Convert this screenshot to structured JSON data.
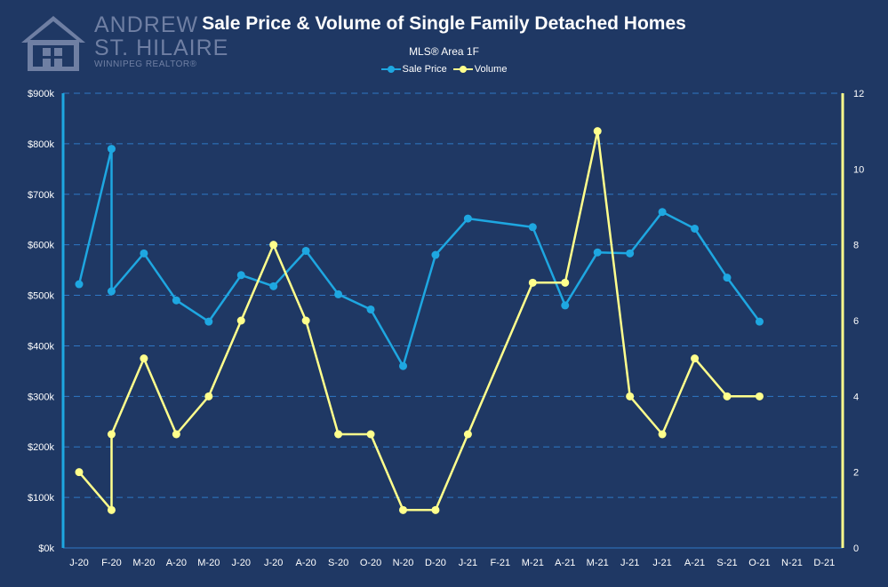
{
  "logo": {
    "line1": "ANDREW",
    "line2": "ST. HILAIRE",
    "line3": "WINNIPEG REALTOR®",
    "icon": "house-icon"
  },
  "colors": {
    "background": "#1f3864",
    "sale_price": "#1ea7e1",
    "volume": "#ffff8c",
    "grid": "#2f77c4",
    "left_axis": "#1ea7e1",
    "right_axis": "#ffff8c"
  },
  "chart_data": {
    "type": "line",
    "title": "Sale Price & Volume of Single Family Detached Homes",
    "subtitle": "MLS® Area 1F",
    "legend_position": "top",
    "grid": true,
    "categories": [
      "J-20",
      "F-20",
      "M-20",
      "A-20",
      "M-20",
      "J-20",
      "J-20",
      "A-20",
      "S-20",
      "O-20",
      "N-20",
      "D-20",
      "J-21",
      "F-21",
      "M-21",
      "A-21",
      "M-21",
      "J-21",
      "J-21",
      "A-21",
      "S-21",
      "O-21",
      "N-21",
      "D-21"
    ],
    "y_left": {
      "range": [
        0,
        900000
      ],
      "ticks": [
        0,
        100000,
        200000,
        300000,
        400000,
        500000,
        600000,
        700000,
        800000,
        900000
      ],
      "tick_labels": [
        "$0k",
        "$100k",
        "$200k",
        "$300k",
        "$400k",
        "$500k",
        "$600k",
        "$700k",
        "$800k",
        "$900k"
      ]
    },
    "y_right": {
      "range": [
        0,
        12
      ],
      "ticks": [
        0,
        2,
        4,
        6,
        8,
        10,
        12
      ],
      "tick_labels": [
        "0",
        "2",
        "4",
        "6",
        "8",
        "10",
        "12"
      ]
    },
    "series": [
      {
        "name": "Sale Price",
        "axis": "left",
        "points": [
          {
            "x": 0,
            "y": 522000
          },
          {
            "x": 1,
            "y": 790000
          },
          {
            "x": 1,
            "y": 508000
          },
          {
            "x": 2,
            "y": 583000
          },
          {
            "x": 3,
            "y": 490000
          },
          {
            "x": 4,
            "y": 448000
          },
          {
            "x": 5,
            "y": 540000
          },
          {
            "x": 6,
            "y": 518000
          },
          {
            "x": 7,
            "y": 588000
          },
          {
            "x": 8,
            "y": 502000
          },
          {
            "x": 9,
            "y": 472000
          },
          {
            "x": 10,
            "y": 360000
          },
          {
            "x": 11,
            "y": 580000
          },
          {
            "x": 12,
            "y": 652000
          },
          {
            "x": 14,
            "y": 635000
          },
          {
            "x": 15,
            "y": 480000
          },
          {
            "x": 16,
            "y": 585000
          },
          {
            "x": 17,
            "y": 583000
          },
          {
            "x": 18,
            "y": 665000
          },
          {
            "x": 19,
            "y": 632000
          },
          {
            "x": 20,
            "y": 535000
          },
          {
            "x": 21,
            "y": 448000
          }
        ]
      },
      {
        "name": "Volume",
        "axis": "right",
        "points": [
          {
            "x": 0,
            "y": 2
          },
          {
            "x": 1,
            "y": 1
          },
          {
            "x": 1,
            "y": 3
          },
          {
            "x": 2,
            "y": 5
          },
          {
            "x": 3,
            "y": 3
          },
          {
            "x": 4,
            "y": 4
          },
          {
            "x": 5,
            "y": 6
          },
          {
            "x": 6,
            "y": 8
          },
          {
            "x": 7,
            "y": 6
          },
          {
            "x": 8,
            "y": 3
          },
          {
            "x": 9,
            "y": 3
          },
          {
            "x": 10,
            "y": 1
          },
          {
            "x": 11,
            "y": 1
          },
          {
            "x": 12,
            "y": 3
          },
          {
            "x": 14,
            "y": 7
          },
          {
            "x": 15,
            "y": 7
          },
          {
            "x": 16,
            "y": 11
          },
          {
            "x": 17,
            "y": 4
          },
          {
            "x": 18,
            "y": 3
          },
          {
            "x": 19,
            "y": 5
          },
          {
            "x": 20,
            "y": 4
          },
          {
            "x": 21,
            "y": 4
          }
        ]
      }
    ]
  }
}
